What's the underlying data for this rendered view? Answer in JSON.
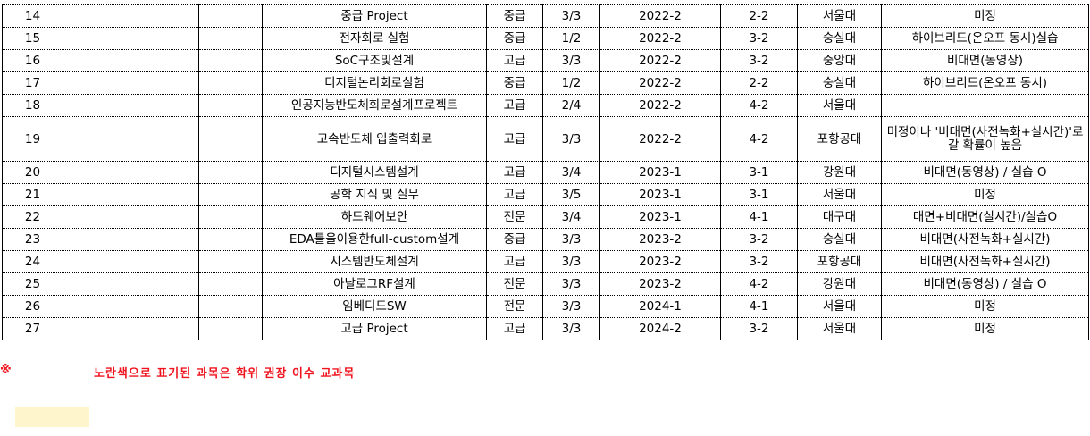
{
  "table": {
    "rows": [
      {
        "no": "14",
        "c2": "",
        "c3": "",
        "course": "중급 Project",
        "level": "중급",
        "credits": "3/3",
        "semester": "2022-2",
        "grade": "2-2",
        "school": "서울대",
        "method": "미정"
      },
      {
        "no": "15",
        "c2": "",
        "c3": "",
        "course": "전자회로 실험",
        "level": "중급",
        "credits": "1/2",
        "semester": "2022-2",
        "grade": "3-2",
        "school": "숭실대",
        "method": "하이브리드(온오프 동시)실습"
      },
      {
        "no": "16",
        "c2": "",
        "c3": "",
        "course": "SoC구조및설계",
        "level": "고급",
        "credits": "3/3",
        "semester": "2022-2",
        "grade": "3-2",
        "school": "중앙대",
        "method": "비대면(동영상)"
      },
      {
        "no": "17",
        "c2": "",
        "c3": "",
        "course": "디지털논리회로실험",
        "level": "중급",
        "credits": "1/2",
        "semester": "2022-2",
        "grade": "2-2",
        "school": "숭실대",
        "method": "하이브리드(온오프 동시)"
      },
      {
        "no": "18",
        "c2": "",
        "c3": "",
        "course": "인공지능반도체회로설계프로젝트",
        "level": "고급",
        "credits": "2/4",
        "semester": "2022-2",
        "grade": "4-2",
        "school": "서울대",
        "method": ""
      },
      {
        "no": "19",
        "c2": "",
        "c3": "",
        "course": "고속반도체 입출력회로",
        "level": "고급",
        "credits": "3/3",
        "semester": "2022-2",
        "grade": "4-2",
        "school": "포항공대",
        "method": "미정이나 '비대면(사전녹화+실시간)'로 갈 확률이 높음"
      },
      {
        "no": "20",
        "c2": "",
        "c3": "",
        "course": "디지털시스템설계",
        "level": "고급",
        "credits": "3/4",
        "semester": "2023-1",
        "grade": "3-1",
        "school": "강원대",
        "method": "비대면(동영상) / 실습 O"
      },
      {
        "no": "21",
        "c2": "",
        "c3": "",
        "course": "공학 지식 및 실무",
        "level": "고급",
        "credits": "3/5",
        "semester": "2023-1",
        "grade": "3-1",
        "school": "서울대",
        "method": "미정"
      },
      {
        "no": "22",
        "c2": "",
        "c3": "",
        "course": "하드웨어보안",
        "level": "전문",
        "credits": "3/4",
        "semester": "2023-1",
        "grade": "4-1",
        "school": "대구대",
        "method": "대면+비대면(실시간)/실습O"
      },
      {
        "no": "23",
        "c2": "",
        "c3": "",
        "course": "EDA툴을이용한full-custom설계",
        "level": "중급",
        "credits": "3/3",
        "semester": "2023-2",
        "grade": "3-2",
        "school": "숭실대",
        "method": "비대면(사전녹화+실시간)"
      },
      {
        "no": "24",
        "c2": "",
        "c3": "",
        "course": "시스템반도체설계",
        "level": "고급",
        "credits": "3/3",
        "semester": "2023-2",
        "grade": "3-2",
        "school": "포항공대",
        "method": "비대면(사전녹화+실시간)"
      },
      {
        "no": "25",
        "c2": "",
        "c3": "",
        "course": "아날로그RF설계",
        "level": "전문",
        "credits": "3/3",
        "semester": "2023-2",
        "grade": "4-2",
        "school": "강원대",
        "method": "비대면(동영상) / 실습 O"
      },
      {
        "no": "26",
        "c2": "",
        "c3": "",
        "course": "임베디드SW",
        "level": "전문",
        "credits": "3/3",
        "semester": "2024-1",
        "grade": "4-1",
        "school": "서울대",
        "method": "미정"
      },
      {
        "no": "27",
        "c2": "",
        "c3": "",
        "course": "고급 Project",
        "level": "고급",
        "credits": "3/3",
        "semester": "2024-2",
        "grade": "3-2",
        "school": "서울대",
        "method": "미정"
      }
    ]
  },
  "note": {
    "mark": "※",
    "text": "노란색으로 표기된 과목은 학위 권장 이수 교과목"
  },
  "colors": {
    "note": "#f0141e",
    "highlight": "#fff5cc"
  }
}
